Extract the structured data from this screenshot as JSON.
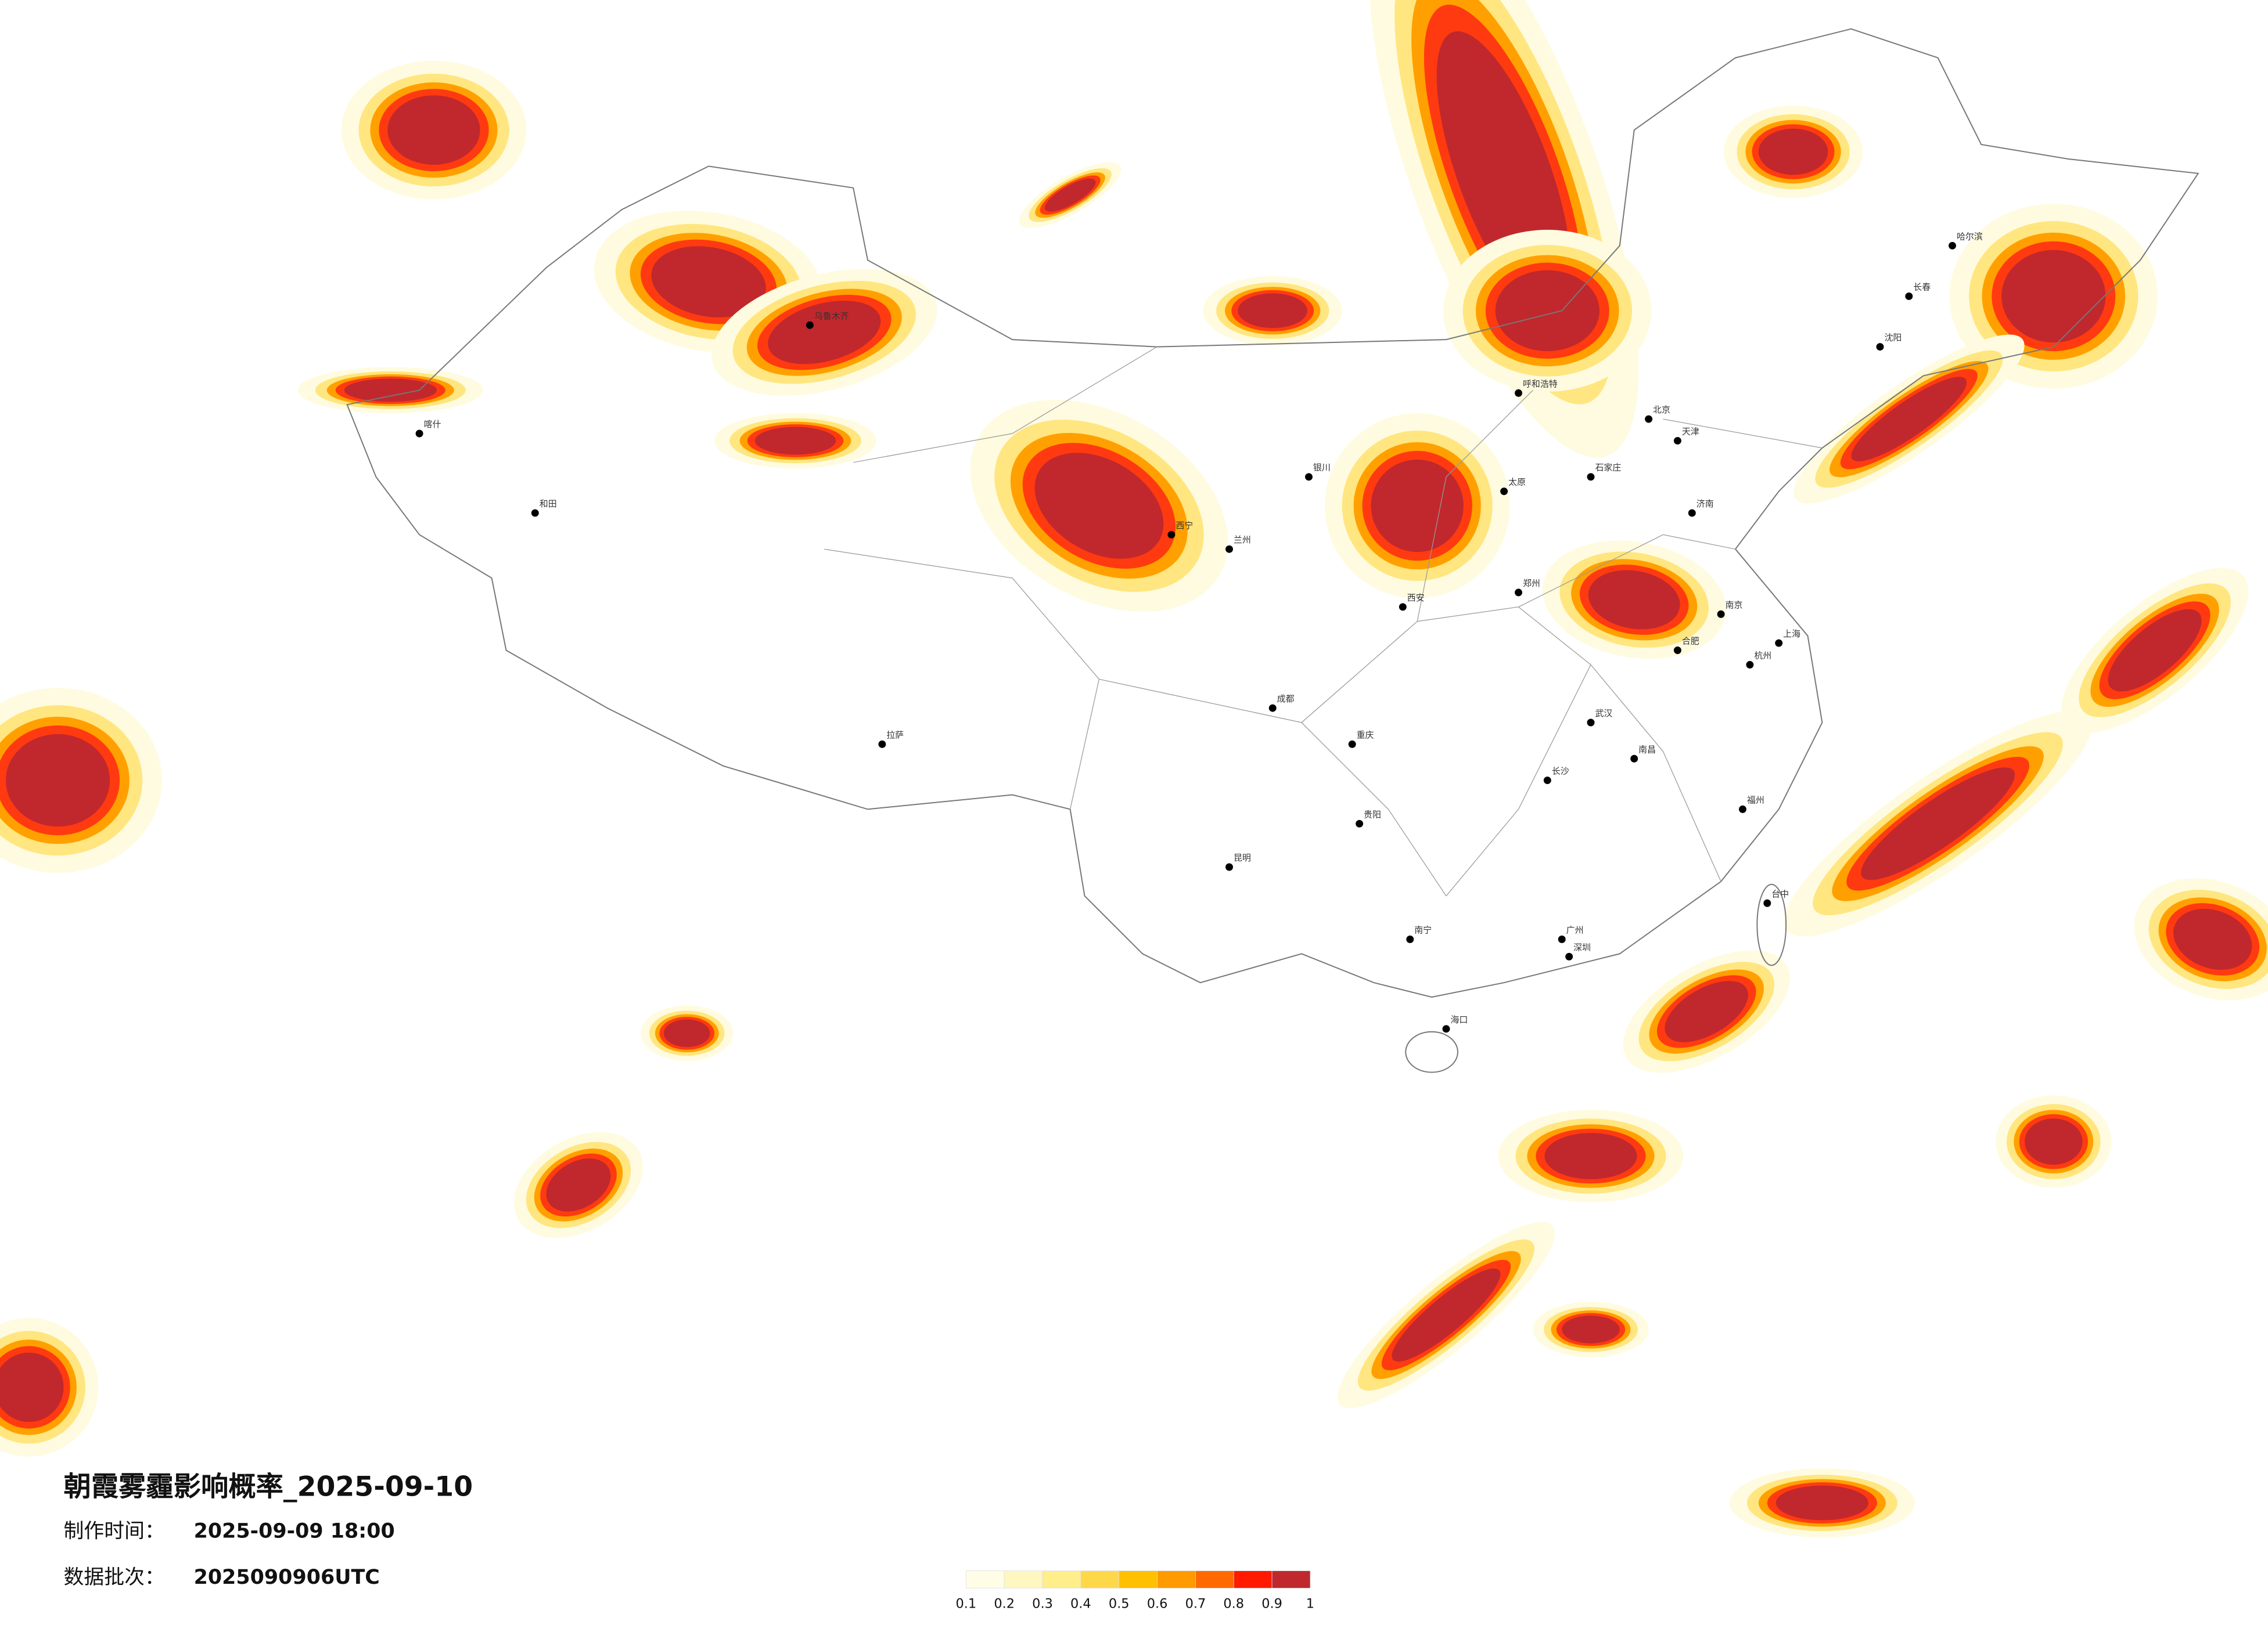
{
  "title": "朝霞雾霾影响概率_2025-09-10",
  "made_label": "制作时间：",
  "made_time": "2025-09-09 18:00",
  "batch_label": "数据批次：",
  "batch": "2025090906UTC",
  "legend": {
    "ticks": [
      0.1,
      0.2,
      0.3,
      0.4,
      0.5,
      0.6,
      0.7,
      0.8,
      0.9,
      1
    ],
    "colors": [
      "#fffde6",
      "#fff7c0",
      "#ffee8a",
      "#ffd84a",
      "#ffc000",
      "#ff9a00",
      "#ff6a00",
      "#ff1a00",
      "#c0282d"
    ]
  },
  "cities": [
    "北京",
    "天津",
    "上海",
    "广州",
    "深圳",
    "重庆",
    "成都",
    "武汉",
    "西安",
    "郑州",
    "长沙",
    "南京",
    "杭州",
    "福州",
    "南昌",
    "贵阳",
    "昆明",
    "南宁",
    "海口",
    "兰州",
    "西宁",
    "银川",
    "呼和浩特",
    "太原",
    "石家庄",
    "济南",
    "合肥",
    "沈阳",
    "长春",
    "哈尔滨",
    "拉萨",
    "乌鲁木齐",
    "喀什",
    "和田",
    "台中"
  ]
}
